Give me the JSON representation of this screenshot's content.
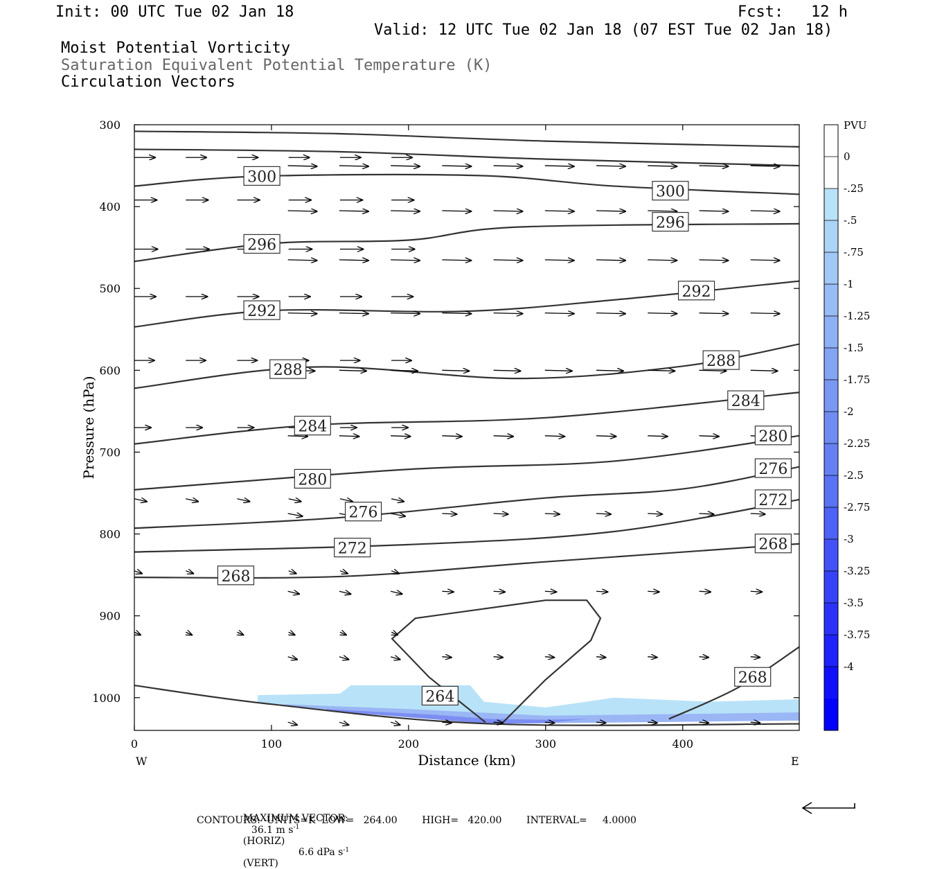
{
  "header": {
    "init": "Init: 00 UTC Tue 02 Jan 18",
    "fcst": "Fcst:   12 h",
    "valid": "Valid: 12 UTC Tue 02 Jan 18 (07 EST Tue 02 Jan 18)",
    "field1": "Moist Potential Vorticity",
    "field2": "Saturation Equivalent Potential Temperature (K)",
    "field3": "Circulation Vectors"
  },
  "footer": {
    "max_vector_label": "MAXIMUM VECTOR:",
    "max_horiz": "36.1 m s",
    "max_horiz_unit": "(HORIZ)",
    "max_vert": "6.6 dPa s",
    "max_vert_unit": "(VERT)",
    "exponent": "-1",
    "contours_line": "CONTOURS:  UNITS=K  LOW=   264.00        HIGH=   420.00        INTERVAL=     4.0000"
  },
  "colors": {
    "contour": "#333333",
    "pv_light": "#b8e2f8",
    "pv_dark": "#0000ff"
  },
  "chart_data": {
    "type": "cross-section",
    "xlabel": "Distance (km)",
    "ylabel": "Pressure (hPa)",
    "xlim": [
      0,
      485
    ],
    "ylim": [
      1040,
      300
    ],
    "x_ticks": [
      0,
      100,
      200,
      300,
      400
    ],
    "y_ticks": [
      300,
      400,
      500,
      600,
      700,
      800,
      900,
      1000
    ],
    "x_end_labels": {
      "left": "W",
      "right": "E"
    },
    "colorbar": {
      "title": "PVU",
      "labels": [
        "0",
        "-.25",
        "-.5",
        "-.75",
        "-1",
        "-1.25",
        "-1.5",
        "-1.75",
        "-2",
        "-2.25",
        "-2.5",
        "-2.75",
        "-3",
        "-3.25",
        "-3.5",
        "-3.75",
        "-4"
      ],
      "colors": [
        "#ffffff",
        "#ffffff",
        "#b8e2f8",
        "#acd4f7",
        "#a2c8f6",
        "#98bcf5",
        "#8eb0f4",
        "#84a4f4",
        "#7a98f3",
        "#708cf3",
        "#6680f3",
        "#5a72f4",
        "#4e62f5",
        "#4252f6",
        "#3642f7",
        "#2a32f9",
        "#1e22fb",
        "#1010fd",
        "#0000ff"
      ]
    },
    "contours": [
      {
        "label": "",
        "points": [
          [
            0,
            308
          ],
          [
            150,
            311
          ],
          [
            300,
            320
          ],
          [
            485,
            327
          ]
        ]
      },
      {
        "label": "",
        "points": [
          [
            0,
            330
          ],
          [
            150,
            333
          ],
          [
            300,
            342
          ],
          [
            485,
            350
          ]
        ]
      },
      {
        "label": "300",
        "label_at": [
          93,
          363
        ],
        "points": [
          [
            0,
            375
          ],
          [
            90,
            363
          ],
          [
            250,
            362
          ],
          [
            350,
            375
          ],
          [
            485,
            385
          ]
        ]
      },
      {
        "label": "300",
        "label_at": [
          391,
          381
        ]
      },
      {
        "label": "296",
        "label_at": [
          93,
          446
        ],
        "points": [
          [
            0,
            467
          ],
          [
            100,
            445
          ],
          [
            200,
            441
          ],
          [
            280,
            425
          ],
          [
            485,
            421
          ]
        ]
      },
      {
        "label": "296",
        "label_at": [
          391,
          419
        ]
      },
      {
        "label": "292",
        "label_at": [
          93,
          527
        ],
        "points": [
          [
            0,
            547
          ],
          [
            100,
            527
          ],
          [
            240,
            528
          ],
          [
            350,
            514
          ],
          [
            485,
            491
          ]
        ]
      },
      {
        "label": "292",
        "label_at": [
          410,
          503
        ]
      },
      {
        "label": "288",
        "label_at": [
          112,
          599
        ],
        "points": [
          [
            0,
            622
          ],
          [
            130,
            596
          ],
          [
            280,
            610
          ],
          [
            400,
            595
          ],
          [
            485,
            568
          ]
        ]
      },
      {
        "label": "288",
        "label_at": [
          428,
          588
        ]
      },
      {
        "label": "284",
        "label_at": [
          130,
          668
        ],
        "points": [
          [
            0,
            690
          ],
          [
            130,
            667
          ],
          [
            300,
            658
          ],
          [
            485,
            627
          ]
        ]
      },
      {
        "label": "284",
        "label_at": [
          446,
          637
        ]
      },
      {
        "label": "280",
        "label_at": [
          130,
          733
        ],
        "points": [
          [
            0,
            746
          ],
          [
            200,
            721
          ],
          [
            350,
            711
          ],
          [
            485,
            680
          ]
        ]
      },
      {
        "label": "280",
        "label_at": [
          466,
          680
        ]
      },
      {
        "label": "276",
        "label_at": [
          167,
          773
        ],
        "points": [
          [
            0,
            793
          ],
          [
            150,
            780
          ],
          [
            300,
            756
          ],
          [
            400,
            745
          ],
          [
            485,
            718
          ]
        ]
      },
      {
        "label": "276",
        "label_at": [
          466,
          720
        ]
      },
      {
        "label": "272",
        "label_at": [
          159,
          817
        ],
        "points": [
          [
            0,
            822
          ],
          [
            200,
            813
          ],
          [
            350,
            797
          ],
          [
            485,
            758
          ]
        ]
      },
      {
        "label": "272",
        "label_at": [
          466,
          758
        ]
      },
      {
        "label": "268",
        "label_at": [
          74,
          851
        ],
        "points": [
          [
            0,
            853
          ],
          [
            150,
            852
          ],
          [
            300,
            834
          ],
          [
            485,
            812
          ]
        ]
      },
      {
        "label": "268",
        "label_at": [
          466,
          812
        ]
      },
      {
        "label": "268",
        "label_at": [
          451,
          975
        ],
        "points": [
          [
            390,
            1026
          ],
          [
            440,
            988
          ],
          [
            485,
            938
          ]
        ]
      },
      {
        "label": "264",
        "label_at": [
          223,
          998
        ],
        "points": [
          [
            0,
            985
          ],
          [
            100,
            1008
          ],
          [
            260,
            1032
          ],
          [
            485,
            1032
          ]
        ],
        "closed_loop": [
          [
            256,
            1030
          ],
          [
            215,
            975
          ],
          [
            188,
            928
          ],
          [
            205,
            903
          ],
          [
            300,
            881
          ],
          [
            330,
            881
          ],
          [
            340,
            903
          ],
          [
            333,
            930
          ],
          [
            300,
            978
          ],
          [
            269,
            1030
          ]
        ]
      }
    ],
    "pv_shading": {
      "level_min": -0.25,
      "level_max": -2.5,
      "region_km": [
        90,
        485
      ]
    }
  }
}
